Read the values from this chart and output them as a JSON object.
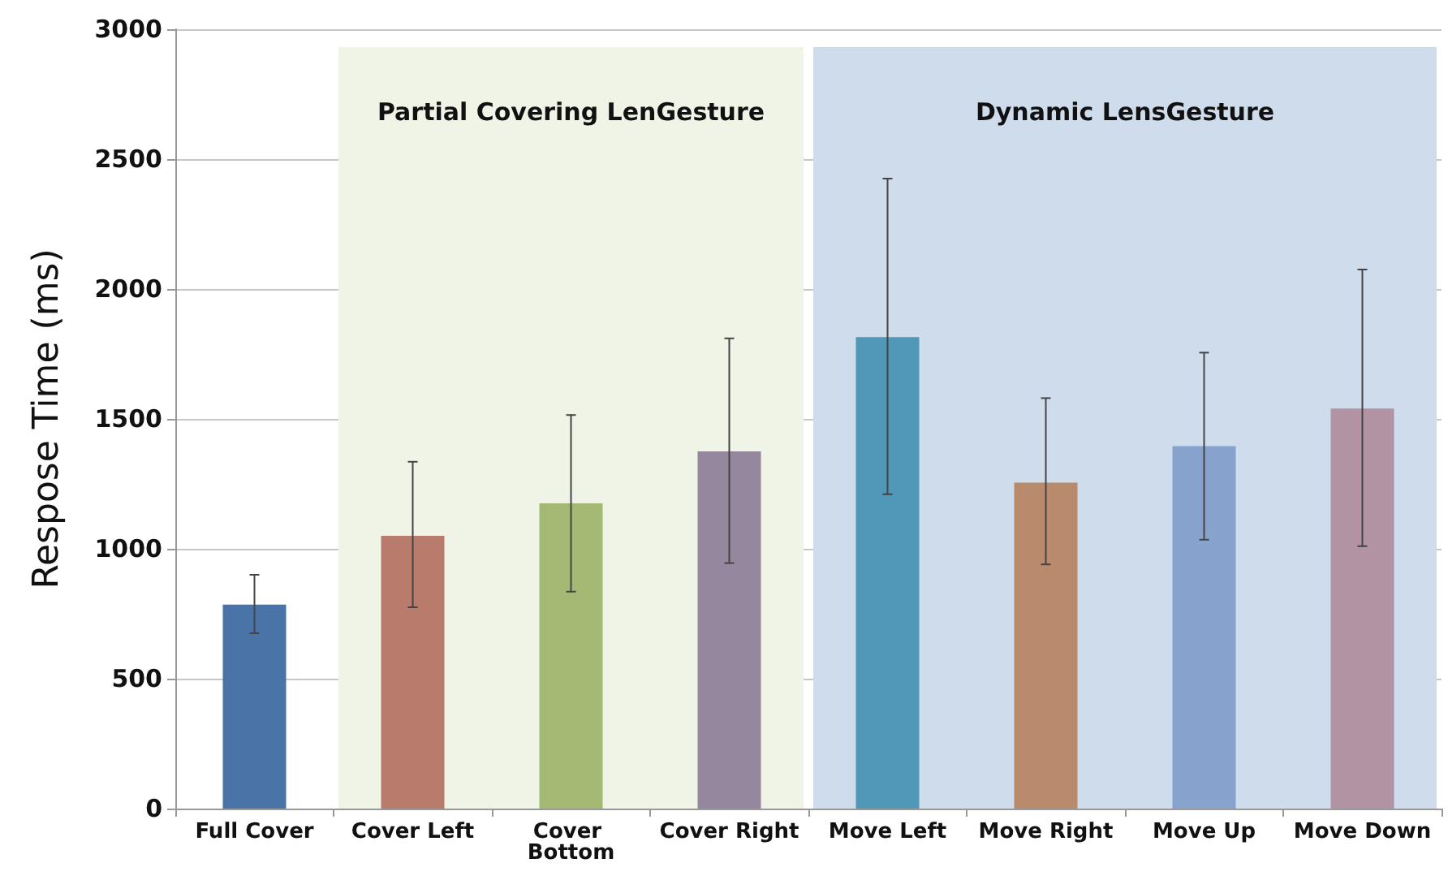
{
  "chart_data": {
    "type": "bar",
    "ylabel": "Respose Time (ms)",
    "categories": [
      "Full Cover",
      "Cover Left",
      "Cover Bottom",
      "Cover Right",
      "Move Left",
      "Move Right",
      "Move Up",
      "Move Down"
    ],
    "values": [
      785,
      1050,
      1175,
      1375,
      1815,
      1255,
      1395,
      1540
    ],
    "colors": [
      "#4a74a8",
      "#b97b6c",
      "#a4ba74",
      "#94879e",
      "#5198b8",
      "#b98a6c",
      "#87a2cc",
      "#b193a4"
    ],
    "errors": [
      [
        675,
        900
      ],
      [
        775,
        1335
      ],
      [
        835,
        1515
      ],
      [
        945,
        1810
      ],
      [
        1210,
        2425
      ],
      [
        940,
        1580
      ],
      [
        1035,
        1755
      ],
      [
        1010,
        2075
      ]
    ],
    "ylim": [
      0,
      3000
    ],
    "yticks": [
      0,
      500,
      1000,
      1500,
      2000,
      2500,
      3000
    ],
    "grid": "y",
    "bands": [
      {
        "axis": "x",
        "from": "Cover Left",
        "to": "Cover Right",
        "label": "Partial Covering LenGesture",
        "color": "#eff4e6"
      },
      {
        "axis": "x",
        "from": "Move Left",
        "to": "Move Down",
        "label": "Dynamic LensGesture",
        "color": "#cfdcec"
      }
    ]
  }
}
